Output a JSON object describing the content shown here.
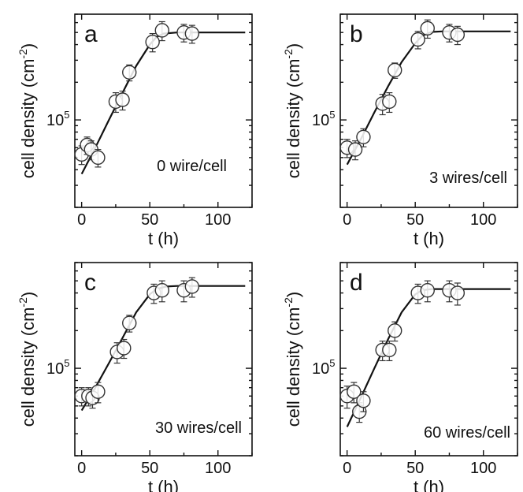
{
  "chart_data": [
    {
      "type": "scatter",
      "panel_label": "a",
      "annotation": "0 wire/cell",
      "xlabel": "t (h)",
      "ylabel": "cell density (cm",
      "ylabel_exp": "-2",
      "ylabel_close": ")",
      "xticks": [
        "0",
        "50",
        "100"
      ],
      "yticks": [
        {
          "base": "10",
          "exp": "5"
        }
      ],
      "xlim": [
        -5,
        125
      ],
      "ylim": [
        20000,
        700000
      ],
      "yscale": "log",
      "points": [
        {
          "x": 0,
          "y": 53000,
          "err": 9000
        },
        {
          "x": 4,
          "y": 63000,
          "err": 10000
        },
        {
          "x": 7,
          "y": 58000,
          "err": 10000
        },
        {
          "x": 12,
          "y": 50000,
          "err": 8000
        },
        {
          "x": 25,
          "y": 140000,
          "err": 25000
        },
        {
          "x": 30,
          "y": 145000,
          "err": 25000
        },
        {
          "x": 35,
          "y": 240000,
          "err": 35000
        },
        {
          "x": 52,
          "y": 420000,
          "err": 70000
        },
        {
          "x": 59,
          "y": 520000,
          "err": 90000
        },
        {
          "x": 75,
          "y": 500000,
          "err": 80000
        },
        {
          "x": 81,
          "y": 490000,
          "err": 80000
        }
      ],
      "fit": [
        {
          "x": 0,
          "y": 37000
        },
        {
          "x": 10,
          "y": 60000
        },
        {
          "x": 20,
          "y": 100000
        },
        {
          "x": 30,
          "y": 165000
        },
        {
          "x": 40,
          "y": 270000
        },
        {
          "x": 50,
          "y": 400000
        },
        {
          "x": 55,
          "y": 460000
        },
        {
          "x": 60,
          "y": 490000
        },
        {
          "x": 70,
          "y": 500000
        },
        {
          "x": 120,
          "y": 500000
        }
      ]
    },
    {
      "type": "scatter",
      "panel_label": "b",
      "annotation": "3 wires/cell",
      "xlabel": "t (h)",
      "ylabel": "cell density (cm",
      "ylabel_exp": "-2",
      "ylabel_close": ")",
      "xticks": [
        "0",
        "50",
        "100"
      ],
      "yticks": [
        {
          "base": "10",
          "exp": "5"
        }
      ],
      "xlim": [
        -5,
        125
      ],
      "ylim": [
        20000,
        700000
      ],
      "yscale": "log",
      "points": [
        {
          "x": 0,
          "y": 60000,
          "err": 10000
        },
        {
          "x": 6,
          "y": 58000,
          "err": 10000
        },
        {
          "x": 12,
          "y": 73000,
          "err": 12000
        },
        {
          "x": 26,
          "y": 135000,
          "err": 25000
        },
        {
          "x": 31,
          "y": 140000,
          "err": 25000
        },
        {
          "x": 35,
          "y": 250000,
          "err": 35000
        },
        {
          "x": 52,
          "y": 440000,
          "err": 70000
        },
        {
          "x": 59,
          "y": 540000,
          "err": 90000
        },
        {
          "x": 75,
          "y": 500000,
          "err": 80000
        },
        {
          "x": 81,
          "y": 480000,
          "err": 80000
        }
      ],
      "fit": [
        {
          "x": 0,
          "y": 44000
        },
        {
          "x": 10,
          "y": 70000
        },
        {
          "x": 20,
          "y": 115000
        },
        {
          "x": 30,
          "y": 185000
        },
        {
          "x": 40,
          "y": 290000
        },
        {
          "x": 50,
          "y": 410000
        },
        {
          "x": 55,
          "y": 470000
        },
        {
          "x": 62,
          "y": 505000
        },
        {
          "x": 70,
          "y": 510000
        },
        {
          "x": 120,
          "y": 510000
        }
      ]
    },
    {
      "type": "scatter",
      "panel_label": "c",
      "annotation": "30 wires/cell",
      "xlabel": "t (h)",
      "ylabel": "cell density (cm",
      "ylabel_exp": "-2",
      "ylabel_close": ")",
      "xticks": [
        "0",
        "50",
        "100"
      ],
      "yticks": [
        {
          "base": "10",
          "exp": "5"
        }
      ],
      "xlim": [
        -5,
        125
      ],
      "ylim": [
        20000,
        700000
      ],
      "yscale": "log",
      "points": [
        {
          "x": 0,
          "y": 60000,
          "err": 10000
        },
        {
          "x": 5,
          "y": 60000,
          "err": 10000
        },
        {
          "x": 8,
          "y": 58000,
          "err": 10000
        },
        {
          "x": 12,
          "y": 65000,
          "err": 12000
        },
        {
          "x": 26,
          "y": 135000,
          "err": 25000
        },
        {
          "x": 31,
          "y": 145000,
          "err": 25000
        },
        {
          "x": 35,
          "y": 230000,
          "err": 35000
        },
        {
          "x": 53,
          "y": 400000,
          "err": 70000
        },
        {
          "x": 59,
          "y": 420000,
          "err": 80000
        },
        {
          "x": 75,
          "y": 420000,
          "err": 80000
        },
        {
          "x": 81,
          "y": 450000,
          "err": 80000
        }
      ],
      "fit": [
        {
          "x": 0,
          "y": 46000
        },
        {
          "x": 10,
          "y": 70000
        },
        {
          "x": 20,
          "y": 110000
        },
        {
          "x": 30,
          "y": 175000
        },
        {
          "x": 40,
          "y": 280000
        },
        {
          "x": 50,
          "y": 390000
        },
        {
          "x": 55,
          "y": 430000
        },
        {
          "x": 62,
          "y": 450000
        },
        {
          "x": 70,
          "y": 455000
        },
        {
          "x": 120,
          "y": 455000
        }
      ]
    },
    {
      "type": "scatter",
      "panel_label": "d",
      "annotation": "60 wires/cell",
      "xlabel": "t (h)",
      "ylabel": "cell density (cm",
      "ylabel_exp": "-2",
      "ylabel_close": ")",
      "xticks": [
        "0",
        "50",
        "100"
      ],
      "yticks": [
        {
          "base": "10",
          "exp": "5"
        }
      ],
      "xlim": [
        -5,
        125
      ],
      "ylim": [
        20000,
        700000
      ],
      "yscale": "log",
      "points": [
        {
          "x": 0,
          "y": 60000,
          "err": 12000
        },
        {
          "x": 5,
          "y": 65000,
          "err": 12000
        },
        {
          "x": 9,
          "y": 45000,
          "err": 8000
        },
        {
          "x": 12,
          "y": 55000,
          "err": 10000
        },
        {
          "x": 26,
          "y": 140000,
          "err": 25000
        },
        {
          "x": 31,
          "y": 140000,
          "err": 25000
        },
        {
          "x": 35,
          "y": 200000,
          "err": 35000
        },
        {
          "x": 52,
          "y": 400000,
          "err": 70000
        },
        {
          "x": 59,
          "y": 420000,
          "err": 80000
        },
        {
          "x": 75,
          "y": 420000,
          "err": 80000
        },
        {
          "x": 81,
          "y": 400000,
          "err": 80000
        }
      ],
      "fit": [
        {
          "x": 0,
          "y": 34000
        },
        {
          "x": 10,
          "y": 58000
        },
        {
          "x": 20,
          "y": 100000
        },
        {
          "x": 30,
          "y": 170000
        },
        {
          "x": 40,
          "y": 280000
        },
        {
          "x": 50,
          "y": 390000
        },
        {
          "x": 55,
          "y": 420000
        },
        {
          "x": 62,
          "y": 430000
        },
        {
          "x": 70,
          "y": 430000
        },
        {
          "x": 120,
          "y": 430000
        }
      ]
    }
  ]
}
